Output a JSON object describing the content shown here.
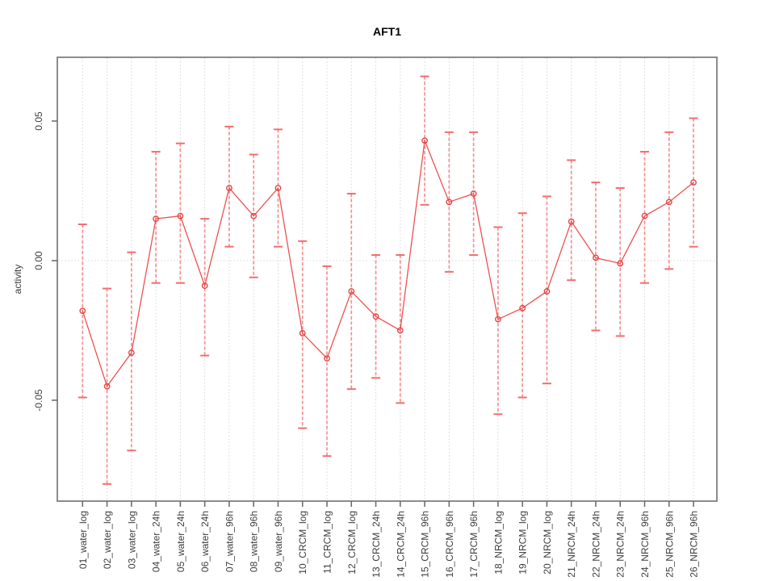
{
  "chart_data": {
    "type": "line",
    "title": "AFT1",
    "ylabel": "activity",
    "xlabel": "",
    "legend": "none",
    "grid": "dotted vertical gridline at every category; dotted horizontal line at y=0",
    "marker": "open-circle",
    "error_bars": true,
    "ylim": [
      -0.086,
      0.073
    ],
    "yticks": [
      0.05,
      0.0,
      -0.05
    ],
    "ytick_labels": [
      "0.05",
      "0.00",
      "-0.05"
    ],
    "categories": [
      "01_water_log",
      "02_water_log",
      "03_water_log",
      "04_water_24h",
      "05_water_24h",
      "06_water_24h",
      "07_water_96h",
      "08_water_96h",
      "09_water_96h",
      "10_CRCM_log",
      "11_CRCM_log",
      "12_CRCM_log",
      "13_CRCM_24h",
      "14_CRCM_24h",
      "15_CRCM_96h",
      "16_CRCM_96h",
      "17_CRCM_96h",
      "18_NRCM_log",
      "19_NRCM_log",
      "20_NRCM_log",
      "21_NRCM_24h",
      "22_NRCM_24h",
      "23_NRCM_24h",
      "24_NRCM_96h",
      "25_NRCM_96h",
      "26_NRCM_96h"
    ],
    "series": [
      {
        "name": "AFT1 activity",
        "values": [
          -0.018,
          -0.045,
          -0.033,
          0.015,
          0.016,
          -0.009,
          0.026,
          0.016,
          0.026,
          -0.026,
          -0.035,
          -0.011,
          -0.02,
          -0.025,
          0.043,
          0.021,
          0.024,
          -0.021,
          -0.017,
          -0.011,
          0.014,
          0.001,
          -0.001,
          0.016,
          0.021,
          0.028
        ],
        "err_low": [
          -0.049,
          -0.08,
          -0.068,
          -0.008,
          -0.008,
          -0.034,
          0.005,
          -0.006,
          0.005,
          -0.06,
          -0.07,
          -0.046,
          -0.042,
          -0.051,
          0.02,
          -0.004,
          0.002,
          -0.055,
          -0.049,
          -0.044,
          -0.007,
          -0.025,
          -0.027,
          -0.008,
          -0.003,
          0.005
        ],
        "err_high": [
          0.013,
          -0.01,
          0.003,
          0.039,
          0.042,
          0.015,
          0.048,
          0.038,
          0.047,
          0.007,
          -0.002,
          0.024,
          0.002,
          0.002,
          0.066,
          0.046,
          0.046,
          0.012,
          0.017,
          0.023,
          0.036,
          0.028,
          0.026,
          0.039,
          0.046,
          0.051
        ]
      }
    ],
    "colors": {
      "series_line": "#ed5151",
      "marker_stroke": "#e64545",
      "error_bar": "#f69090",
      "error_cap": "#f26d6d",
      "gridline": "#d6d6d6",
      "zero_line": "#d9d9d9",
      "plot_border": "#7f7f7f",
      "tick": "#666666",
      "tick_label": "#3d3d3d",
      "title": "#000000"
    }
  }
}
